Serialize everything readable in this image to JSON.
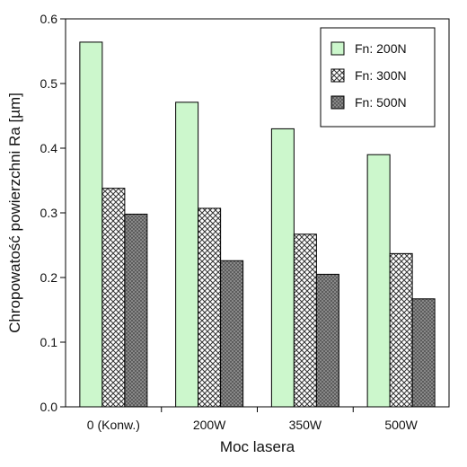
{
  "chart_data": {
    "type": "bar",
    "title": "",
    "xlabel": "Moc lasera",
    "ylabel": "Chropowatość powierzchni Ra [µm]",
    "categories": [
      "0 (Konw.)",
      "200W",
      "350W",
      "500W"
    ],
    "ylim": [
      0,
      0.6
    ],
    "yticks": [
      "0.0",
      "0.1",
      "0.2",
      "0.3",
      "0.4",
      "0.5",
      "0.6"
    ],
    "grid": false,
    "legend_position": "top-right",
    "series": [
      {
        "name": "Fn: 200N",
        "values": [
          0.564,
          0.471,
          0.43,
          0.39
        ],
        "fill": "#ccf7cc",
        "pattern": "solid"
      },
      {
        "name": "Fn: 300N",
        "values": [
          0.338,
          0.307,
          0.267,
          0.237
        ],
        "fill": "#ffffff",
        "pattern": "crosshatch"
      },
      {
        "name": "Fn: 500N",
        "values": [
          0.298,
          0.226,
          0.205,
          0.167
        ],
        "fill": "#6e6e6e",
        "pattern": "dots"
      }
    ]
  }
}
